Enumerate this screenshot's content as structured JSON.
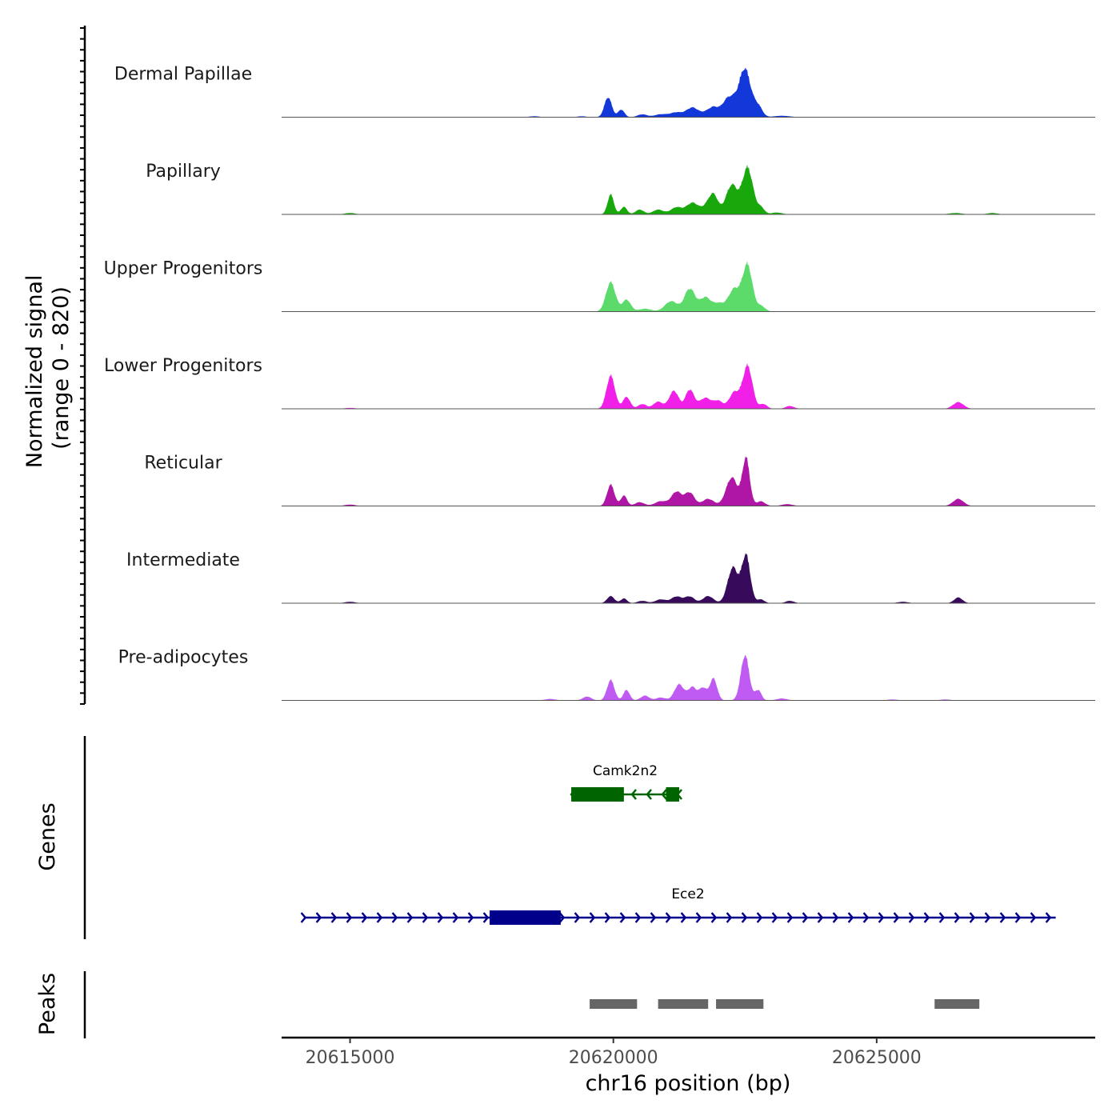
{
  "chart_data": {
    "type": "area",
    "title": "",
    "ylabel": "Normalized signal\n(range 0 - 820)",
    "ylabel_lines": [
      "Normalized signal",
      "(range 0 - 820)"
    ],
    "ylim": [
      0,
      820
    ],
    "xlabel": "chr16 position (bp)",
    "xlim": [
      20613700,
      20629150
    ],
    "xticks": [
      20615000,
      20620000,
      20625000
    ],
    "xtick_labels": [
      "20615000",
      "20620000",
      "20625000"
    ],
    "series": [
      {
        "name": "Dermal Papillae",
        "color": "#1338D9",
        "peaks": [
          [
            20619900,
            0.42,
            70
          ],
          [
            20620150,
            0.16,
            60
          ],
          [
            20620550,
            0.06,
            90
          ],
          [
            20620900,
            0.06,
            120
          ],
          [
            20621200,
            0.1,
            120
          ],
          [
            20621500,
            0.2,
            110
          ],
          [
            20621900,
            0.17,
            90
          ],
          [
            20621750,
            0.08,
            100
          ],
          [
            20622200,
            0.42,
            130
          ],
          [
            20622500,
            1.0,
            110
          ],
          [
            20622750,
            0.22,
            80
          ],
          [
            20623200,
            0.03,
            150
          ],
          [
            20618500,
            0.02,
            100
          ],
          [
            20619400,
            0.02,
            80
          ]
        ]
      },
      {
        "name": "Papillary",
        "color": "#18A80B",
        "peaks": [
          [
            20619950,
            0.42,
            60
          ],
          [
            20620200,
            0.16,
            60
          ],
          [
            20620500,
            0.1,
            80
          ],
          [
            20620850,
            0.1,
            100
          ],
          [
            20621200,
            0.15,
            110
          ],
          [
            20621500,
            0.24,
            110
          ],
          [
            20621900,
            0.4,
            90
          ],
          [
            20621750,
            0.12,
            100
          ],
          [
            20622250,
            0.62,
            110
          ],
          [
            20622550,
            0.98,
            100
          ],
          [
            20622800,
            0.14,
            70
          ],
          [
            20623100,
            0.04,
            100
          ],
          [
            20615000,
            0.03,
            100
          ],
          [
            20626500,
            0.03,
            120
          ],
          [
            20627200,
            0.03,
            100
          ]
        ]
      },
      {
        "name": "Upper Progenitors",
        "color": "#5CDB6A",
        "peaks": [
          [
            20619950,
            0.62,
            90
          ],
          [
            20620250,
            0.25,
            80
          ],
          [
            20620600,
            0.06,
            120
          ],
          [
            20621100,
            0.22,
            120
          ],
          [
            20621450,
            0.48,
            100
          ],
          [
            20621750,
            0.3,
            110
          ],
          [
            20622000,
            0.15,
            90
          ],
          [
            20622300,
            0.48,
            120
          ],
          [
            20622550,
            0.95,
            90
          ],
          [
            20622800,
            0.12,
            80
          ]
        ]
      },
      {
        "name": "Lower Progenitors",
        "color": "#F020E8",
        "peaks": [
          [
            20619950,
            0.7,
            80
          ],
          [
            20620250,
            0.25,
            70
          ],
          [
            20620550,
            0.1,
            80
          ],
          [
            20620850,
            0.15,
            90
          ],
          [
            20621150,
            0.38,
            90
          ],
          [
            20621450,
            0.4,
            80
          ],
          [
            20621750,
            0.23,
            120
          ],
          [
            20622000,
            0.15,
            80
          ],
          [
            20622300,
            0.35,
            100
          ],
          [
            20622550,
            0.9,
            90
          ],
          [
            20622850,
            0.1,
            70
          ],
          [
            20623350,
            0.06,
            80
          ],
          [
            20626550,
            0.14,
            100
          ],
          [
            20615000,
            0.02,
            100
          ]
        ]
      },
      {
        "name": "Reticular",
        "color": "#B016A5",
        "peaks": [
          [
            20619950,
            0.45,
            70
          ],
          [
            20620200,
            0.22,
            60
          ],
          [
            20620500,
            0.08,
            90
          ],
          [
            20620900,
            0.1,
            110
          ],
          [
            20621200,
            0.3,
            100
          ],
          [
            20621450,
            0.28,
            90
          ],
          [
            20621800,
            0.15,
            110
          ],
          [
            20622250,
            0.6,
            110
          ],
          [
            20622520,
            1.0,
            70
          ],
          [
            20622800,
            0.1,
            80
          ],
          [
            20623300,
            0.04,
            100
          ],
          [
            20626550,
            0.15,
            100
          ],
          [
            20615000,
            0.03,
            100
          ]
        ]
      },
      {
        "name": "Intermediate",
        "color": "#370A5C",
        "peaks": [
          [
            20619950,
            0.15,
            70
          ],
          [
            20620200,
            0.1,
            60
          ],
          [
            20620550,
            0.05,
            90
          ],
          [
            20620900,
            0.08,
            100
          ],
          [
            20621200,
            0.14,
            100
          ],
          [
            20621450,
            0.14,
            90
          ],
          [
            20621800,
            0.15,
            100
          ],
          [
            20622270,
            0.75,
            100
          ],
          [
            20622520,
            1.0,
            80
          ],
          [
            20622800,
            0.08,
            70
          ],
          [
            20623350,
            0.05,
            80
          ],
          [
            20626550,
            0.12,
            80
          ],
          [
            20615000,
            0.03,
            100
          ],
          [
            20625500,
            0.03,
            100
          ]
        ]
      },
      {
        "name": "Pre-adipocytes",
        "color": "#BF5BF2",
        "peaks": [
          [
            20619950,
            0.43,
            70
          ],
          [
            20620250,
            0.22,
            60
          ],
          [
            20619500,
            0.08,
            80
          ],
          [
            20620600,
            0.1,
            80
          ],
          [
            20620900,
            0.06,
            90
          ],
          [
            20621250,
            0.34,
            90
          ],
          [
            20621500,
            0.28,
            80
          ],
          [
            20621700,
            0.26,
            70
          ],
          [
            20621900,
            0.46,
            70
          ],
          [
            20622500,
            0.95,
            80
          ],
          [
            20622750,
            0.22,
            60
          ],
          [
            20623200,
            0.04,
            100
          ],
          [
            20618800,
            0.03,
            100
          ],
          [
            20625300,
            0.02,
            100
          ],
          [
            20626300,
            0.02,
            100
          ]
        ]
      }
    ],
    "genes_label": "Genes",
    "genes": [
      {
        "name": "Camk2n2",
        "color": "#006400",
        "strand": "-",
        "start": 20619200,
        "end": 20621250,
        "exons": [
          [
            20619200,
            20620200
          ],
          [
            20621000,
            20621250
          ]
        ]
      },
      {
        "name": "Ece2",
        "color": "#00008B",
        "strand": "+",
        "start": 20614150,
        "end": 20628400,
        "exons": [
          [
            20617650,
            20619000
          ]
        ]
      }
    ],
    "peaks_label": "Peaks",
    "peaks_color": "#666666",
    "peak_ranges": [
      [
        20619550,
        20620450
      ],
      [
        20620850,
        20621800
      ],
      [
        20621950,
        20622850
      ],
      [
        20626100,
        20626950
      ]
    ]
  }
}
